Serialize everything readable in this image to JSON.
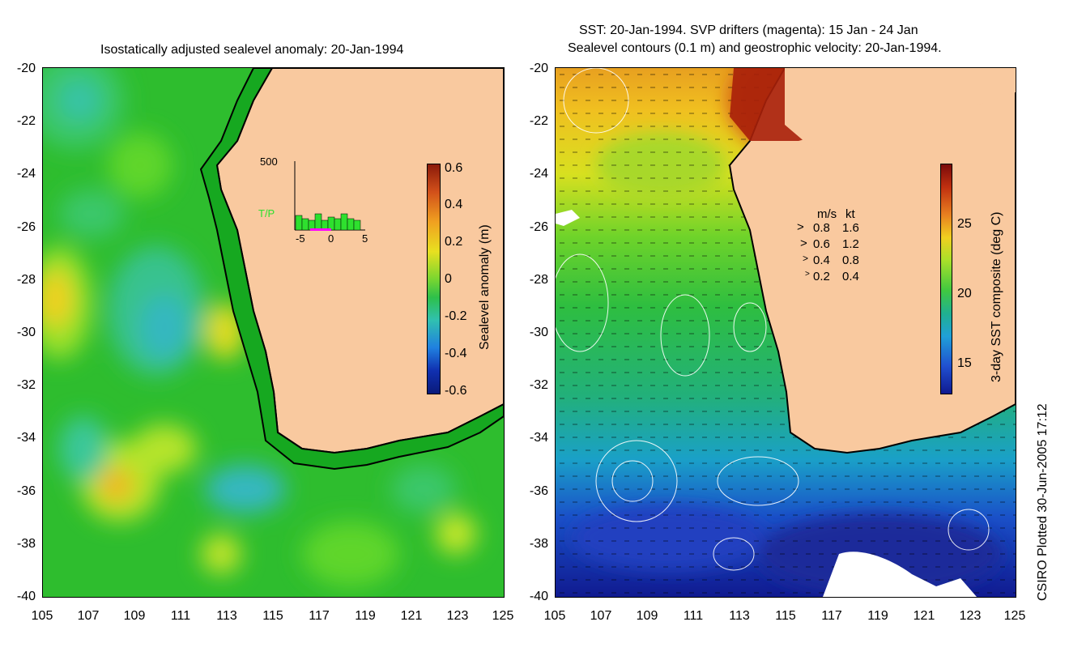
{
  "left_panel": {
    "title": "Isostatically adjusted sealevel anomaly: 20-Jan-1994",
    "y_ticks": [
      "-20",
      "-22",
      "-24",
      "-26",
      "-28",
      "-30",
      "-32",
      "-34",
      "-36",
      "-38",
      "-40"
    ],
    "x_ticks": [
      "105",
      "107",
      "109",
      "111",
      "113",
      "115",
      "117",
      "119",
      "121",
      "123",
      "125"
    ],
    "colorbar": {
      "label": "Sealevel anomaly (m)",
      "ticks": [
        "0.6",
        "0.4",
        "0.2",
        "0",
        "-0.2",
        "-0.4",
        "-0.6"
      ]
    },
    "inset": {
      "ymax_label": "500",
      "series_label": "T/P",
      "x_ticks": [
        "-5",
        "0",
        "5"
      ]
    }
  },
  "right_panel": {
    "title_line1": "SST: 20-Jan-1994. SVP drifters (magenta): 15 Jan - 24 Jan",
    "title_line2": "Sealevel contours (0.1 m) and geostrophic velocity: 20-Jan-1994.",
    "y_ticks": [
      "-20",
      "-22",
      "-24",
      "-26",
      "-28",
      "-30",
      "-32",
      "-34",
      "-36",
      "-38",
      "-40"
    ],
    "x_ticks": [
      "105",
      "107",
      "109",
      "111",
      "113",
      "115",
      "117",
      "119",
      "121",
      "123",
      "125"
    ],
    "colorbar": {
      "label": "3-day SST composite (deg C)",
      "ticks": [
        "25",
        "20",
        "15"
      ]
    },
    "speed_key": {
      "header_ms": "m/s",
      "header_kt": "kt",
      "rows": [
        {
          "ms": "0.8",
          "kt": "1.6"
        },
        {
          "ms": "0.6",
          "kt": "1.2"
        },
        {
          "ms": "0.4",
          "kt": "0.8"
        },
        {
          "ms": "0.2",
          "kt": "0.4"
        }
      ]
    }
  },
  "credit": "CSIRO Plotted 30-Jun-2005 17:12",
  "colors": {
    "land": "#f9c99f",
    "coast": "#000000"
  }
}
